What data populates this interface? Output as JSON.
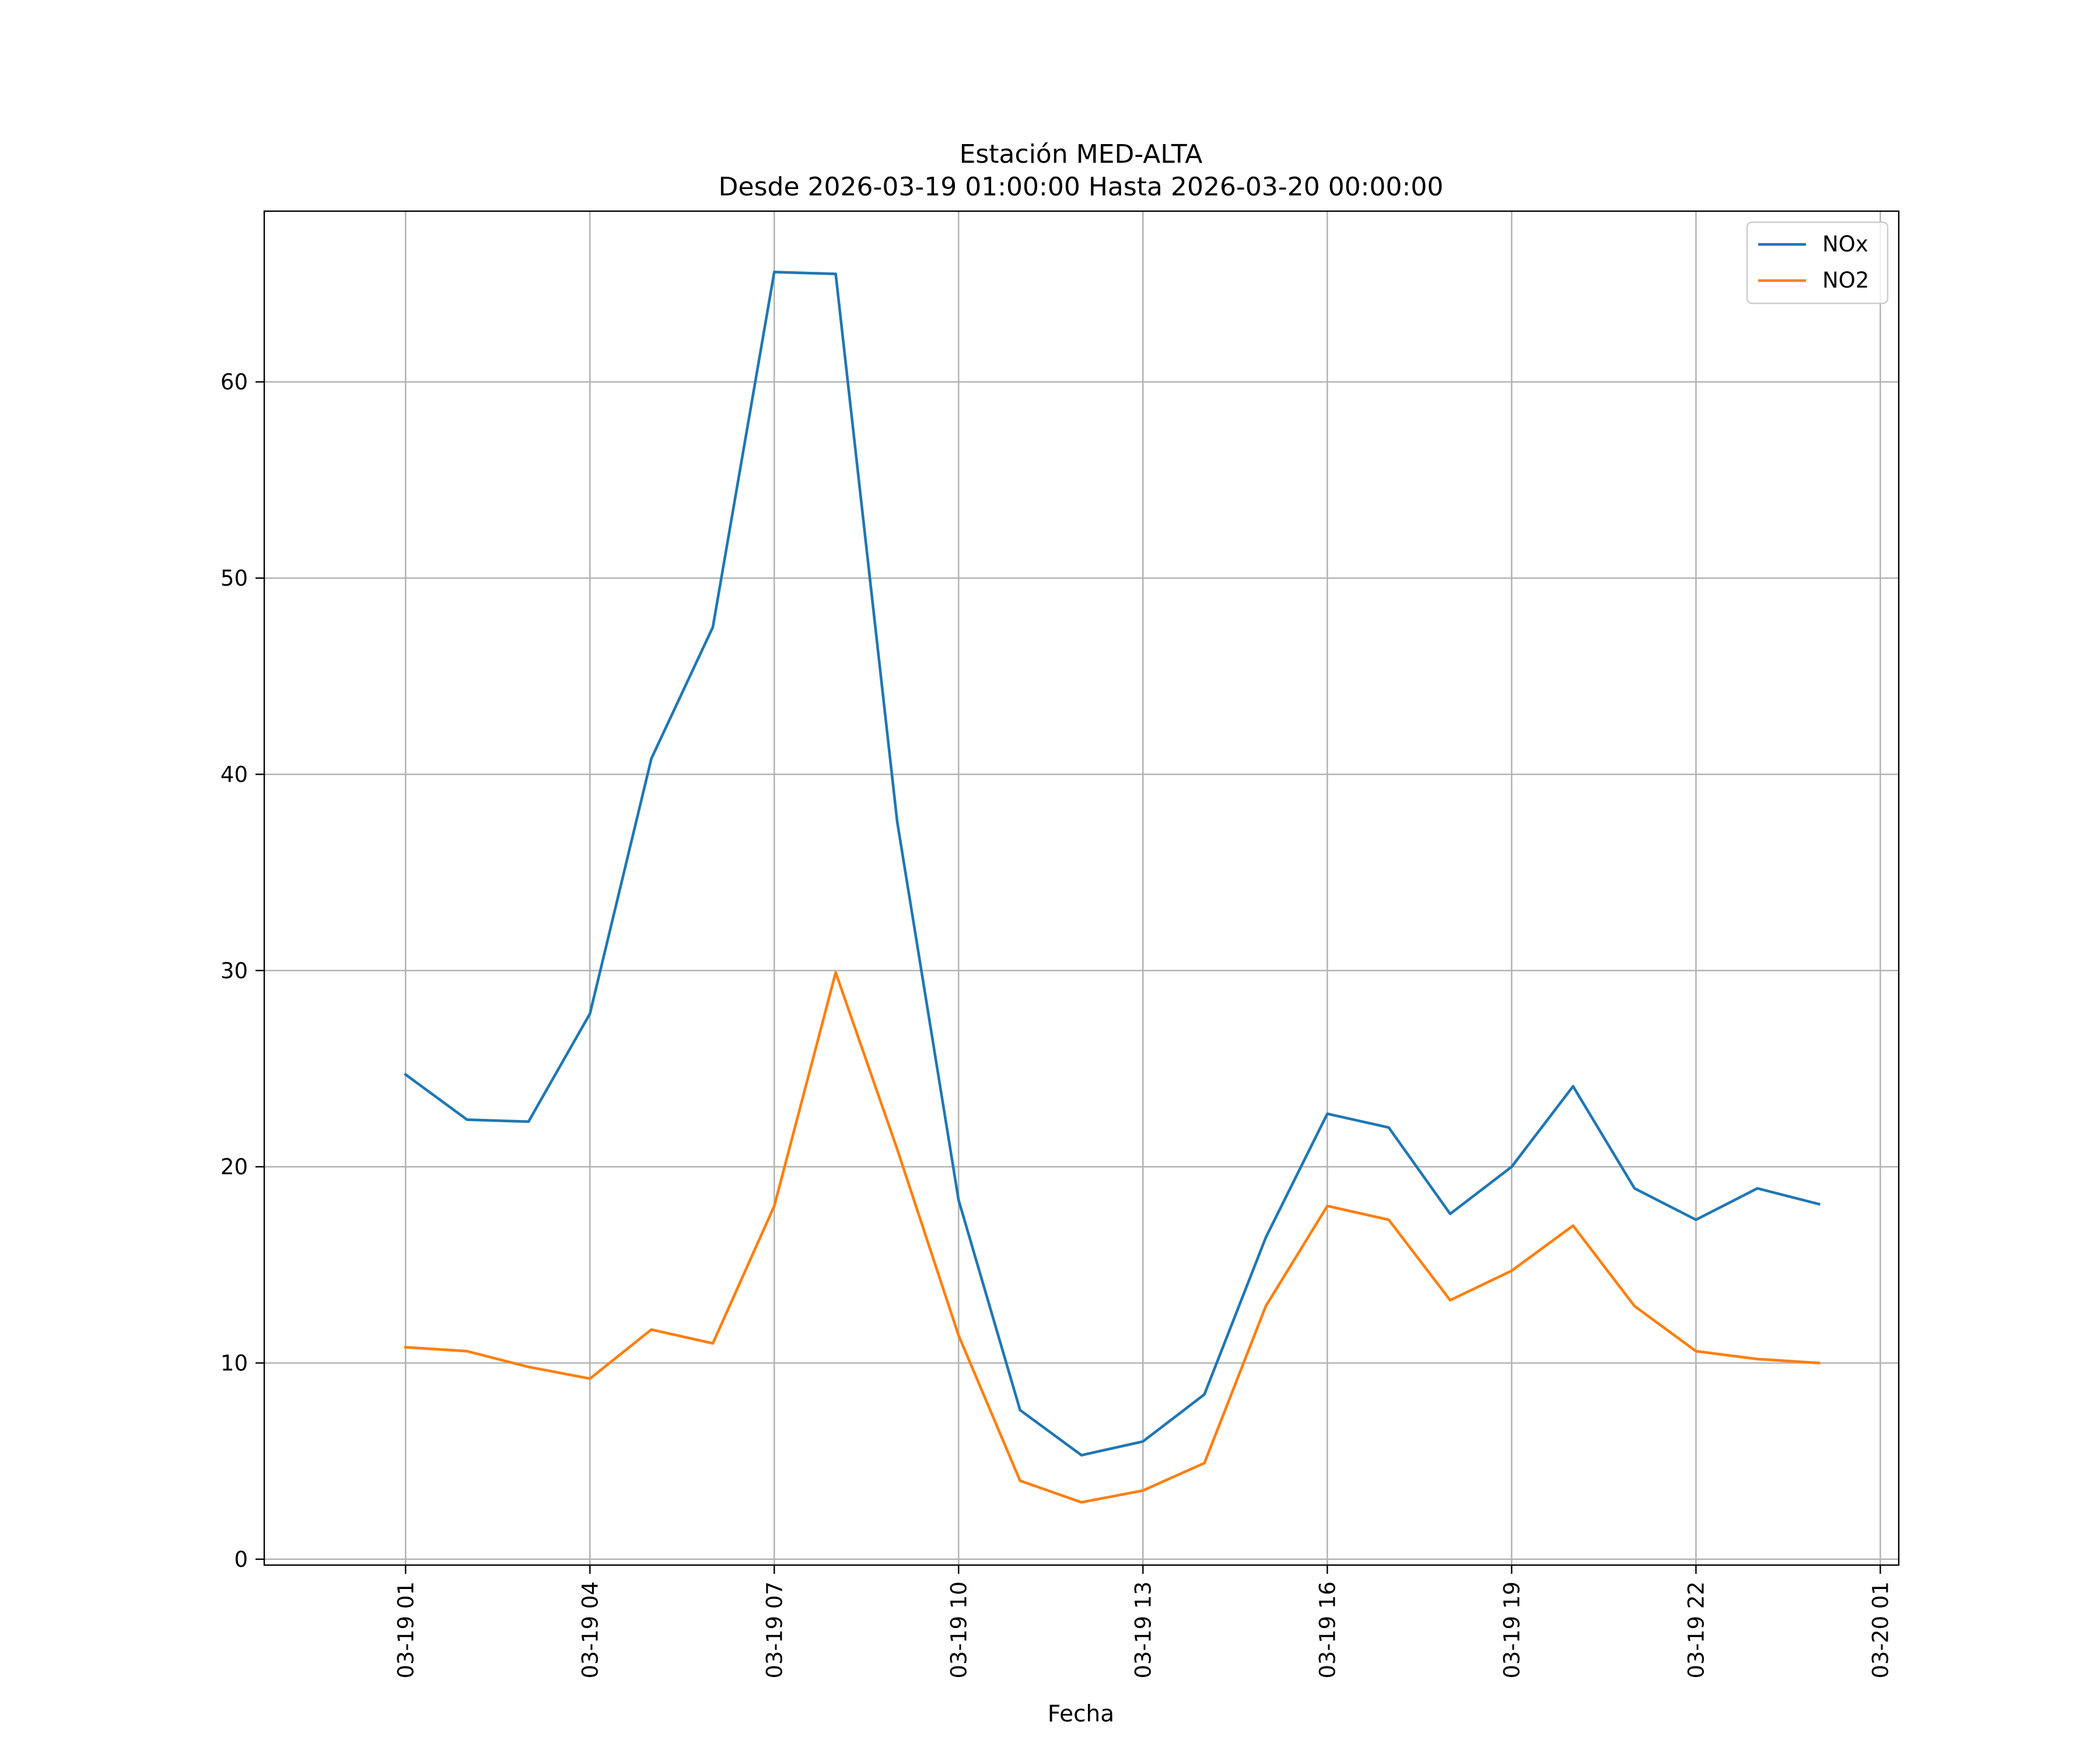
{
  "chart_data": {
    "type": "line",
    "title": "Estación MED-ALTA",
    "subtitle": "Desde 2026-03-19 01:00:00 Hasta 2026-03-20 00:00:00",
    "xlabel": "Fecha",
    "ylabel": "",
    "x": [
      "2026-03-19 01:00",
      "2026-03-19 02:00",
      "2026-03-19 03:00",
      "2026-03-19 04:00",
      "2026-03-19 05:00",
      "2026-03-19 06:00",
      "2026-03-19 07:00",
      "2026-03-19 08:00",
      "2026-03-19 09:00",
      "2026-03-19 10:00",
      "2026-03-19 11:00",
      "2026-03-19 12:00",
      "2026-03-19 13:00",
      "2026-03-19 14:00",
      "2026-03-19 15:00",
      "2026-03-19 16:00",
      "2026-03-19 17:00",
      "2026-03-19 18:00",
      "2026-03-19 19:00",
      "2026-03-19 20:00",
      "2026-03-19 21:00",
      "2026-03-19 22:00",
      "2026-03-19 23:00",
      "2026-03-20 00:00"
    ],
    "series": [
      {
        "name": "NOx",
        "color": "#1f77b4",
        "values": [
          24.7,
          22.4,
          22.3,
          27.8,
          40.8,
          47.5,
          65.6,
          65.5,
          37.6,
          18.3,
          7.6,
          5.3,
          6.0,
          8.4,
          16.4,
          22.7,
          22.0,
          17.6,
          20.0,
          24.1,
          18.9,
          17.3,
          18.9,
          18.1
        ]
      },
      {
        "name": "NO2",
        "color": "#ff7f0e",
        "values": [
          10.8,
          10.6,
          9.8,
          9.2,
          11.7,
          11.0,
          18.0,
          29.9,
          20.9,
          11.4,
          4.0,
          2.9,
          3.5,
          4.9,
          12.9,
          18.0,
          17.3,
          13.2,
          14.7,
          17.0,
          12.9,
          10.6,
          10.2,
          10.0
        ]
      }
    ],
    "xticks": [
      "03-19 01",
      "03-19 04",
      "03-19 07",
      "03-19 10",
      "03-19 13",
      "03-19 16",
      "03-19 19",
      "03-19 22",
      "03-20 01"
    ],
    "yticks": [
      0,
      10,
      20,
      30,
      40,
      50,
      60
    ],
    "xlim": [
      "2026-03-18 22:42",
      "2026-03-20 01:18"
    ],
    "ylim": [
      -0.3,
      68.7
    ],
    "grid": true,
    "legend_position": "top-right"
  }
}
